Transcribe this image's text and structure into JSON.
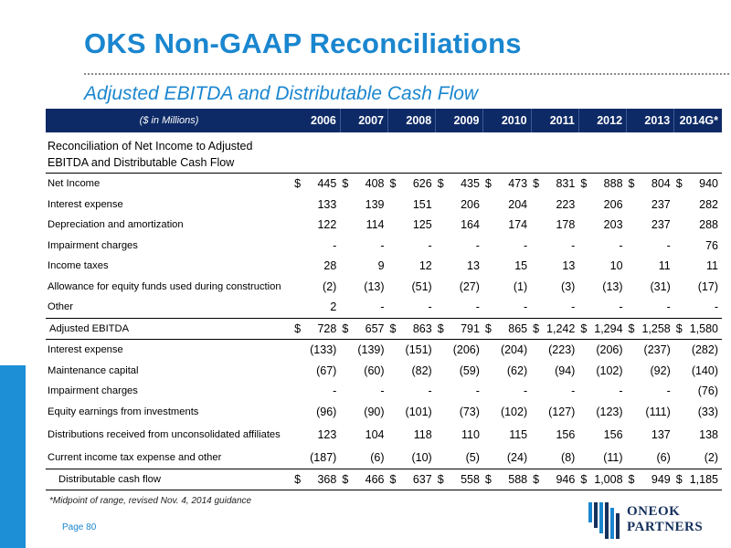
{
  "title": "OKS Non-GAAP Reconciliations",
  "subtitle": "Adjusted EBITDA and Distributable Cash Flow",
  "table": {
    "header_label": "($ in Millions)",
    "years": [
      "2006",
      "2007",
      "2008",
      "2009",
      "2010",
      "2011",
      "2012",
      "2013",
      "2014G*"
    ],
    "section_heading_line1": "Reconciliation of Net Income to  Adjusted",
    "section_heading_line2": "EBITDA and Distributable Cash Flow",
    "rows": [
      {
        "label": "Net Income",
        "values": [
          "445",
          "408",
          "626",
          "435",
          "473",
          "831",
          "888",
          "804",
          "940"
        ],
        "dollar": true,
        "style": ""
      },
      {
        "label": "Interest expense",
        "values": [
          "133",
          "139",
          "151",
          "206",
          "204",
          "223",
          "206",
          "237",
          "282"
        ],
        "dollar": false,
        "style": ""
      },
      {
        "label": "Depreciation and amortization",
        "values": [
          "122",
          "114",
          "125",
          "164",
          "174",
          "178",
          "203",
          "237",
          "288"
        ],
        "dollar": false,
        "style": ""
      },
      {
        "label": "Impairment charges",
        "values": [
          "-",
          "-",
          "-",
          "-",
          "-",
          "-",
          "-",
          "-",
          "76"
        ],
        "dollar": false,
        "style": ""
      },
      {
        "label": "Income taxes",
        "values": [
          "28",
          "9",
          "12",
          "13",
          "15",
          "13",
          "10",
          "11",
          "11"
        ],
        "dollar": false,
        "style": ""
      },
      {
        "label": "Allowance for equity funds used during construction",
        "values": [
          "(2)",
          "(13)",
          "(51)",
          "(27)",
          "(1)",
          "(3)",
          "(13)",
          "(31)",
          "(17)"
        ],
        "dollar": false,
        "style": ""
      },
      {
        "label": "Other",
        "values": [
          "2",
          "-",
          "-",
          "-",
          "-",
          "-",
          "-",
          "-",
          "-"
        ],
        "dollar": false,
        "style": ""
      },
      {
        "label": "Adjusted EBITDA",
        "values": [
          "728",
          "657",
          "863",
          "791",
          "865",
          "1,242",
          "1,294",
          "1,258",
          "1,580"
        ],
        "dollar": true,
        "style": "ebitda"
      },
      {
        "label": "Interest expense",
        "values": [
          "(133)",
          "(139)",
          "(151)",
          "(206)",
          "(204)",
          "(223)",
          "(206)",
          "(237)",
          "(282)"
        ],
        "dollar": false,
        "style": ""
      },
      {
        "label": "Maintenance capital",
        "values": [
          "(67)",
          "(60)",
          "(82)",
          "(59)",
          "(62)",
          "(94)",
          "(102)",
          "(92)",
          "(140)"
        ],
        "dollar": false,
        "style": ""
      },
      {
        "label": "Impairment charges",
        "values": [
          "-",
          "-",
          "-",
          "-",
          "-",
          "-",
          "-",
          "-",
          "(76)"
        ],
        "dollar": false,
        "style": ""
      },
      {
        "label": "Equity earnings from investments",
        "values": [
          "(96)",
          "(90)",
          "(101)",
          "(73)",
          "(102)",
          "(127)",
          "(123)",
          "(111)",
          "(33)"
        ],
        "dollar": false,
        "style": ""
      },
      {
        "label": "Distributions received from unconsolidated affiliates",
        "values": [
          "123",
          "104",
          "118",
          "110",
          "115",
          "156",
          "156",
          "137",
          "138"
        ],
        "dollar": false,
        "style": "tall"
      },
      {
        "label": "Current income tax expense and other",
        "values": [
          "(187)",
          "(6)",
          "(10)",
          "(5)",
          "(24)",
          "(8)",
          "(11)",
          "(6)",
          "(2)"
        ],
        "dollar": false,
        "style": ""
      },
      {
        "label": "Distributable cash flow",
        "values": [
          "368",
          "466",
          "637",
          "558",
          "588",
          "946",
          "1,008",
          "949",
          "1,185"
        ],
        "dollar": true,
        "style": "total"
      }
    ]
  },
  "footnote": "*Midpoint of range, revised Nov. 4, 2014 guidance",
  "page_label": "Page 80",
  "logo": {
    "line1": "ONEOK",
    "line2": "PARTNERS",
    "icon": "oneok-logo-icon"
  },
  "colors": {
    "title": "#1a86cf",
    "header_bg": "#0d2a66",
    "side_bar": "#1c8fd6",
    "logo_text": "#15305c"
  }
}
